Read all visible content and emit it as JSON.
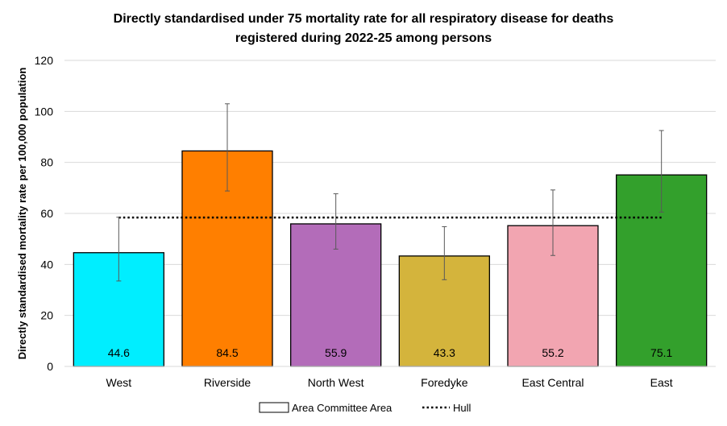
{
  "chart_data": {
    "type": "bar",
    "title_lines": [
      "Directly standardised under 75 mortality rate for all respiratory disease for deaths",
      "registered during 2022-25 among persons"
    ],
    "ylabel": "Directly standardised mortality rate per 100,000 population",
    "xlabel": "",
    "ylim": [
      0,
      120
    ],
    "yticks": [
      0,
      20,
      40,
      60,
      80,
      100,
      120
    ],
    "grid": true,
    "categories": [
      "West",
      "Riverside",
      "North West",
      "Foredyke",
      "East Central",
      "East"
    ],
    "values": [
      44.6,
      84.5,
      55.9,
      43.3,
      55.2,
      75.1
    ],
    "value_labels": [
      "44.6",
      "84.5",
      "55.9",
      "43.3",
      "55.2",
      "75.1"
    ],
    "ci_lower": [
      33.5,
      68.8,
      46.0,
      34.0,
      43.5,
      60.5
    ],
    "ci_upper": [
      58.5,
      103.0,
      67.7,
      54.8,
      69.2,
      92.5
    ],
    "colors": [
      "#00eeff",
      "#ff7f00",
      "#b36cb9",
      "#d4b43c",
      "#f2a5b1",
      "#33a02c"
    ],
    "reference_line": {
      "name": "Hull",
      "value": 58.4
    },
    "legend": {
      "position": "bottom",
      "bar_entry": "Area Committee Area",
      "line_entry": "Hull"
    }
  }
}
